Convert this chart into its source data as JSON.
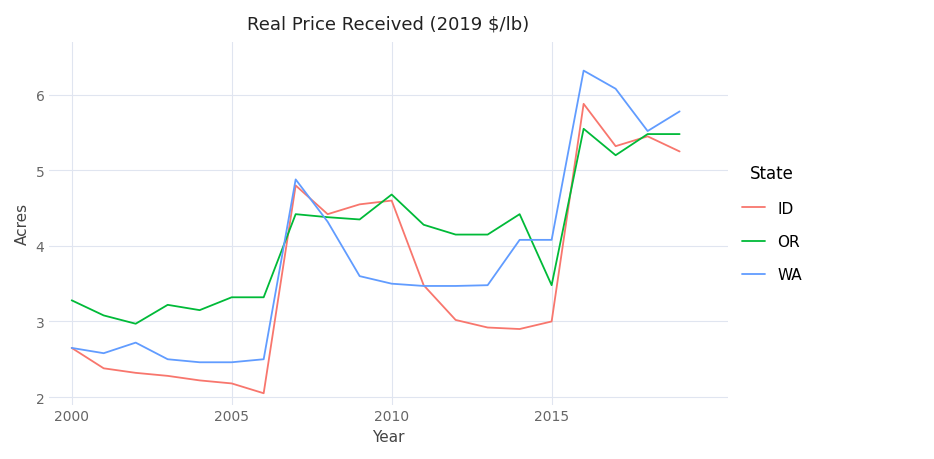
{
  "title": "Real Price Received (2019 $/lb)",
  "xlabel": "Year",
  "ylabel": "Acres",
  "background_color": "#ffffff",
  "plot_bg_color": "#ffffff",
  "grid_color": "#e0e5f0",
  "years": [
    2000,
    2001,
    2002,
    2003,
    2004,
    2005,
    2006,
    2007,
    2008,
    2009,
    2010,
    2011,
    2012,
    2013,
    2014,
    2015,
    2016,
    2017,
    2018,
    2019
  ],
  "ID": [
    2.65,
    2.38,
    2.32,
    2.28,
    2.22,
    2.18,
    2.05,
    4.8,
    4.42,
    4.55,
    4.6,
    3.48,
    3.02,
    2.92,
    2.9,
    3.0,
    5.88,
    5.32,
    5.45,
    5.25
  ],
  "OR": [
    3.28,
    3.08,
    2.97,
    3.22,
    3.15,
    3.32,
    3.32,
    4.42,
    4.38,
    4.35,
    4.68,
    4.28,
    4.15,
    4.15,
    4.42,
    3.48,
    5.55,
    5.2,
    5.48,
    5.48
  ],
  "WA": [
    2.65,
    2.58,
    2.72,
    2.5,
    2.46,
    2.46,
    2.5,
    4.88,
    4.32,
    3.6,
    3.5,
    3.47,
    3.47,
    3.48,
    4.08,
    4.08,
    6.32,
    6.08,
    5.52,
    5.78
  ],
  "ID_color": "#F8766D",
  "OR_color": "#00BA38",
  "WA_color": "#619CFF",
  "ylim": [
    1.9,
    6.7
  ],
  "xlim": [
    1999.3,
    2020.5
  ],
  "yticks": [
    2,
    3,
    4,
    5,
    6
  ],
  "xticks": [
    2000,
    2005,
    2010,
    2015
  ],
  "linewidth": 1.3,
  "title_fontsize": 13,
  "axis_fontsize": 11,
  "tick_fontsize": 10,
  "legend_title_fontsize": 12,
  "legend_fontsize": 11
}
